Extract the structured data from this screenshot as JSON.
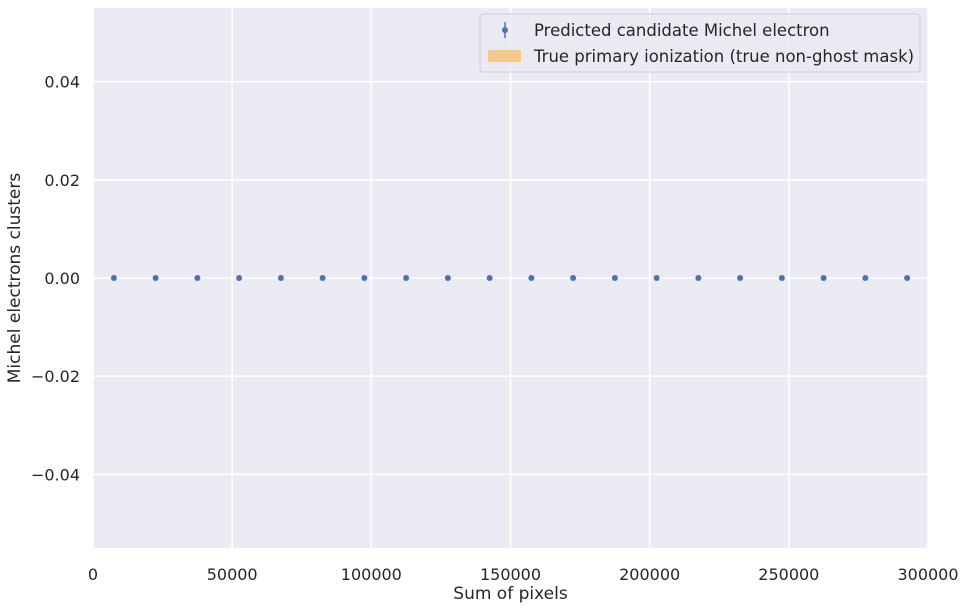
{
  "chart_data": {
    "type": "scatter",
    "title": "",
    "xlabel": "Sum of pixels",
    "ylabel": "Michel electrons clusters",
    "xlim": [
      0,
      300000
    ],
    "ylim": [
      -0.055,
      0.055
    ],
    "x_ticks": [
      0,
      50000,
      100000,
      150000,
      200000,
      250000,
      300000
    ],
    "x_tick_labels": [
      "0",
      "50000",
      "100000",
      "150000",
      "200000",
      "250000",
      "300000"
    ],
    "y_ticks": [
      -0.04,
      -0.02,
      0.0,
      0.02,
      0.04
    ],
    "y_tick_labels": [
      "−0.04",
      "−0.02",
      "0.00",
      "0.02",
      "0.04"
    ],
    "grid": true,
    "legend_position": "top-right",
    "series": [
      {
        "name": "Predicted candidate Michel electron",
        "kind": "errorbar-points",
        "color": "#4c72b0",
        "x": [
          7500,
          22500,
          37500,
          52500,
          67500,
          82500,
          97500,
          112500,
          127500,
          142500,
          157500,
          172500,
          187500,
          202500,
          217500,
          232500,
          247500,
          262500,
          277500,
          292500
        ],
        "y": [
          0,
          0,
          0,
          0,
          0,
          0,
          0,
          0,
          0,
          0,
          0,
          0,
          0,
          0,
          0,
          0,
          0,
          0,
          0,
          0
        ]
      },
      {
        "name": "True primary ionization (true non-ghost mask)",
        "kind": "band",
        "color": "#f2c98a",
        "x": [],
        "y": []
      }
    ]
  }
}
